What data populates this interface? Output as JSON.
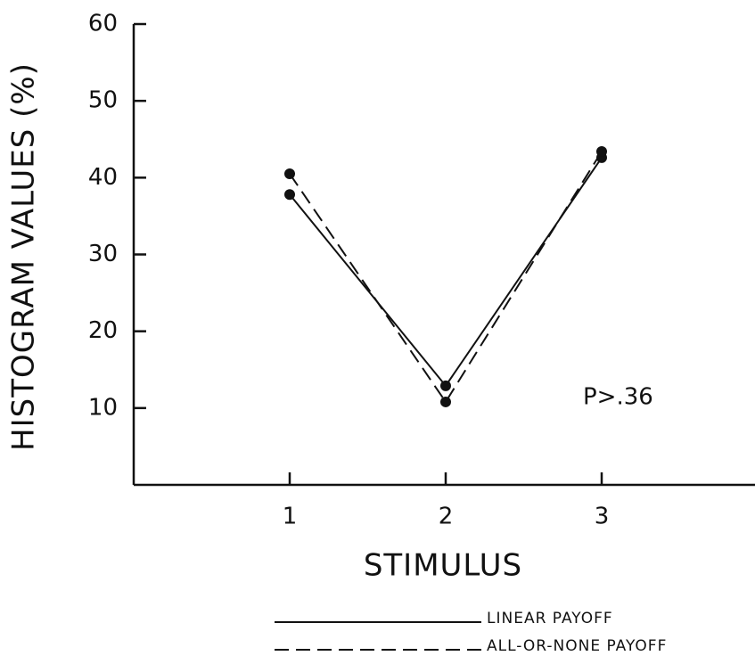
{
  "chart_data": {
    "type": "line",
    "xlabel": "STIMULUS",
    "ylabel": "HISTOGRAM VALUES (%)",
    "annotation": "P>.36",
    "x": [
      1,
      2,
      3
    ],
    "series": [
      {
        "name": "LINEAR PAYOFF",
        "color": "#111111",
        "dash": "solid",
        "values": [
          37.8,
          12.9,
          42.6
        ]
      },
      {
        "name": "ALL-OR-NONE PAYOFF",
        "color": "#111111",
        "dash": "dashed",
        "values": [
          40.5,
          10.8,
          43.4
        ]
      }
    ],
    "xlim": [
      0,
      4
    ],
    "xticks": [
      1,
      2,
      3
    ],
    "ylim": [
      0,
      60
    ],
    "yticks": [
      10,
      20,
      30,
      40,
      50,
      60
    ],
    "grid": false
  }
}
